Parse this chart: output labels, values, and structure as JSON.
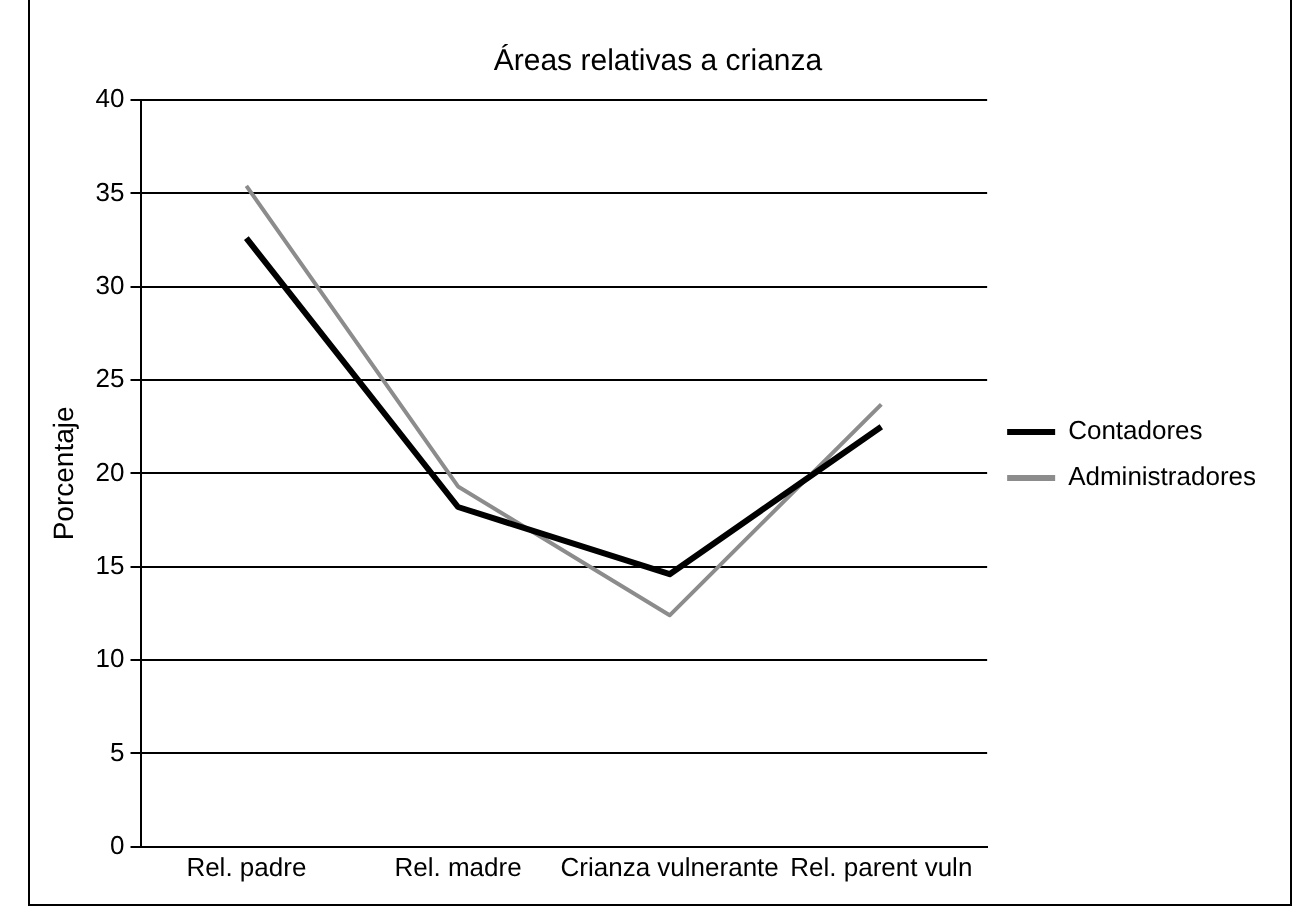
{
  "chart_data": {
    "type": "line",
    "title": "Áreas relativas a crianza",
    "ylabel": "Porcentaje",
    "categories": [
      "Rel. padre",
      "Rel. madre",
      "Crianza vulnerante",
      "Rel. parent vuln"
    ],
    "series": [
      {
        "name": "Contadores",
        "color": "#000000",
        "values": [
          32.6,
          18.2,
          14.6,
          22.5
        ]
      },
      {
        "name": "Administradores",
        "color": "#8c8c8c",
        "values": [
          35.4,
          19.3,
          12.4,
          23.7
        ]
      }
    ],
    "ylim": [
      0,
      40
    ],
    "yticks": [
      0,
      5,
      10,
      15,
      20,
      25,
      30,
      35,
      40
    ],
    "grid": "y",
    "legend": "right",
    "marker": "none"
  }
}
